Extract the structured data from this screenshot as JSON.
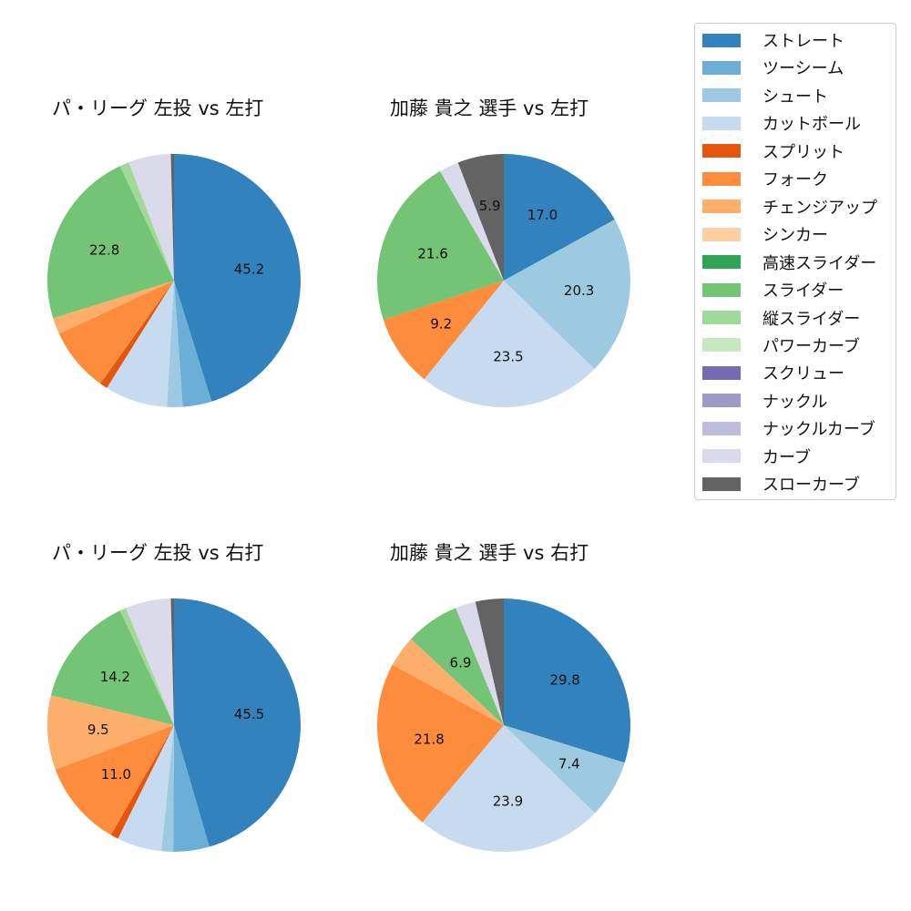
{
  "legend": {
    "items": [
      {
        "label": "ストレート",
        "color": "#3182bd"
      },
      {
        "label": "ツーシーム",
        "color": "#6baed6"
      },
      {
        "label": "シュート",
        "color": "#9ecae1"
      },
      {
        "label": "カットボール",
        "color": "#c6dbef"
      },
      {
        "label": "スプリット",
        "color": "#e6550d"
      },
      {
        "label": "フォーク",
        "color": "#fd8d3c"
      },
      {
        "label": "チェンジアップ",
        "color": "#fdae6b"
      },
      {
        "label": "シンカー",
        "color": "#fdd0a2"
      },
      {
        "label": "高速スライダー",
        "color": "#31a354"
      },
      {
        "label": "スライダー",
        "color": "#74c476"
      },
      {
        "label": "縦スライダー",
        "color": "#a1d99b"
      },
      {
        "label": "パワーカーブ",
        "color": "#c7e9c0"
      },
      {
        "label": "スクリュー",
        "color": "#756bb1"
      },
      {
        "label": "ナックル",
        "color": "#9e9ac8"
      },
      {
        "label": "ナックルカーブ",
        "color": "#bcbddc"
      },
      {
        "label": "カーブ",
        "color": "#dadaeb"
      },
      {
        "label": "スローカーブ",
        "color": "#636363"
      }
    ]
  },
  "chart_data": [
    {
      "type": "pie",
      "title": "パ・リーグ 左投 vs 左打",
      "start_angle": 90,
      "direction": "clockwise",
      "categories": [
        "ストレート",
        "ツーシーム",
        "シュート",
        "カットボール",
        "スプリット",
        "フォーク",
        "チェンジアップ",
        "スライダー",
        "縦スライダー",
        "カーブ",
        "スローカーブ"
      ],
      "values": [
        45.2,
        3.7,
        2.0,
        8.0,
        1.0,
        8.2,
        2.1,
        22.8,
        1.2,
        5.4,
        0.4
      ],
      "labels_shown": [
        "45.2",
        "",
        "",
        "",
        "",
        "",
        "",
        "22.8",
        "",
        "",
        ""
      ]
    },
    {
      "type": "pie",
      "title": "加藤 貴之 選手 vs 左打",
      "start_angle": 90,
      "direction": "clockwise",
      "categories": [
        "ストレート",
        "シュート",
        "カットボール",
        "フォーク",
        "スライダー",
        "カーブ",
        "スローカーブ"
      ],
      "values": [
        17.0,
        20.3,
        23.5,
        9.2,
        21.6,
        2.5,
        5.9
      ],
      "labels_shown": [
        "17.0",
        "20.3",
        "23.5",
        "9.2",
        "21.6",
        "",
        "5.9"
      ]
    },
    {
      "type": "pie",
      "title": "パ・リーグ 左投 vs 右打",
      "start_angle": 90,
      "direction": "clockwise",
      "categories": [
        "ストレート",
        "ツーシーム",
        "シュート",
        "カットボール",
        "スプリット",
        "フォーク",
        "チェンジアップ",
        "スライダー",
        "縦スライダー",
        "カーブ",
        "スローカーブ"
      ],
      "values": [
        45.5,
        4.6,
        1.5,
        5.7,
        1.0,
        11.0,
        9.5,
        14.2,
        0.8,
        5.8,
        0.4
      ],
      "labels_shown": [
        "45.5",
        "",
        "",
        "",
        "",
        "11.0",
        "9.5",
        "14.2",
        "",
        "",
        ""
      ]
    },
    {
      "type": "pie",
      "title": "加藤 貴之 選手 vs 右打",
      "start_angle": 90,
      "direction": "clockwise",
      "categories": [
        "ストレート",
        "シュート",
        "カットボール",
        "フォーク",
        "チェンジアップ",
        "スライダー",
        "カーブ",
        "スローカーブ"
      ],
      "values": [
        29.8,
        7.4,
        23.9,
        21.8,
        4.0,
        6.9,
        2.6,
        3.6
      ],
      "labels_shown": [
        "29.8",
        "7.4",
        "23.9",
        "21.8",
        "",
        "6.9",
        "",
        ""
      ]
    }
  ]
}
